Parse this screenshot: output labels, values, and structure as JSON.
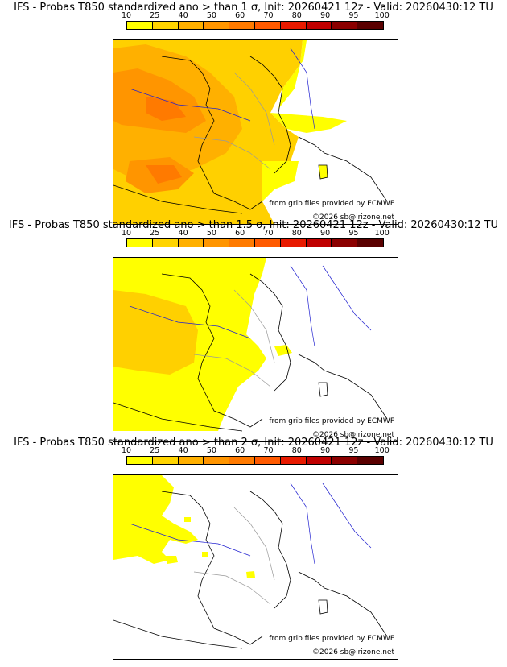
{
  "colorbar": {
    "ticks": [
      "10",
      "25",
      "40",
      "50",
      "60",
      "70",
      "80",
      "90",
      "95",
      "100"
    ],
    "colors": [
      "#ffff00",
      "#ffd400",
      "#ffb000",
      "#ff9500",
      "#ff7a00",
      "#ff5a00",
      "#e81a00",
      "#c00000",
      "#8b0000",
      "#5a0000"
    ]
  },
  "panels": [
    {
      "title": "IFS - Probas T850  standardized ano > than 1 σ, Init: 20260421 12z - Valid: 20260430:12 TU",
      "credit": "from grib files provided by ECMWF",
      "copyright": "©2026 sb@irizone.net"
    },
    {
      "title": "IFS - Probas T850  standardized ano > than 1.5 σ, Init: 20260421 12z - Valid: 20260430:12 TU",
      "credit": "from grib files provided by ECMWF",
      "copyright": "©2026 sb@irizone.net"
    },
    {
      "title": "IFS - Probas T850  standardized ano > than 2 σ, Init: 20260421 12z - Valid: 20260430:12 TU",
      "credit": "from grib files provided by ECMWF",
      "copyright": "©2026 sb@irizone.net"
    }
  ]
}
